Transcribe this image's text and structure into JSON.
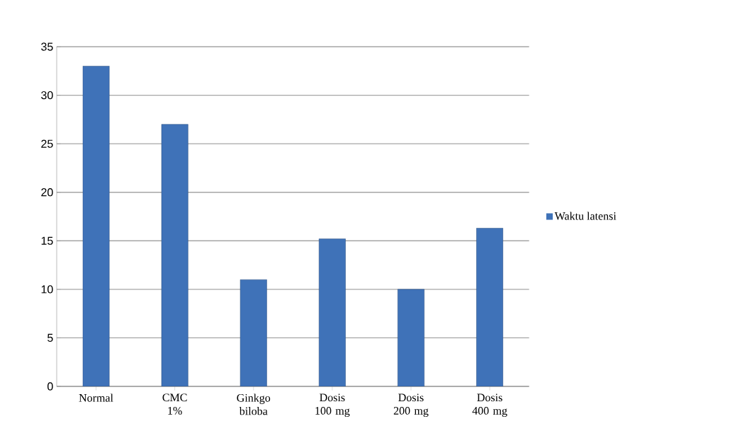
{
  "chart_data": {
    "type": "bar",
    "categories": [
      "Normal",
      "CMC 1%",
      "Ginkgo biloba",
      "Dosis 100 mg",
      "Dosis 200 mg",
      "Dosis 400 mg"
    ],
    "series": [
      {
        "name": "Waktu latensi",
        "color": "#3f72b8",
        "values": [
          33,
          27,
          11,
          15.2,
          10,
          16.3
        ]
      }
    ],
    "ylim": [
      0,
      35
    ],
    "yticks": [
      0,
      5,
      10,
      15,
      20,
      25,
      30,
      35
    ],
    "grid": "y",
    "legend": "right"
  }
}
